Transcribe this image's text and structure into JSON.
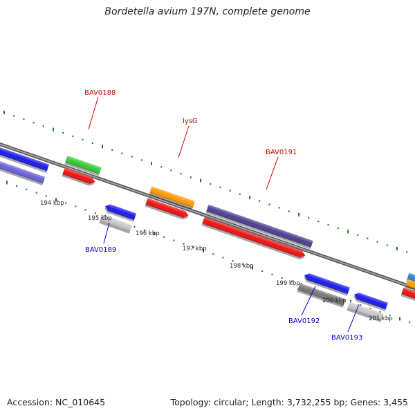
{
  "title": "Bordetella avium 197N, complete genome",
  "footer": {
    "accession": "Accession: NC_010645",
    "summary": "Topology: circular; Length: 3,732,255 bp; Genes: 3,455"
  },
  "scale_labels": [
    "194 kbp",
    "195 kbp",
    "196 kbp",
    "197 kbp",
    "198 kbp",
    "199 kbp",
    "200 kbp",
    "201 kbp"
  ],
  "gene_labels": [
    {
      "text": "BAV0188",
      "strand": "forward",
      "color": "#cc0000"
    },
    {
      "text": "lysG",
      "strand": "forward",
      "color": "#cc0000"
    },
    {
      "text": "BAV0191",
      "strand": "forward",
      "color": "#cc0000"
    },
    {
      "text": "BAV0189",
      "strand": "reverse",
      "color": "#0000cc"
    },
    {
      "text": "BAV0192",
      "strand": "reverse",
      "color": "#0000cc"
    },
    {
      "text": "BAV0193",
      "strand": "reverse",
      "color": "#0000cc"
    }
  ],
  "colors": {
    "backbone": "#8a8a8a",
    "ticks": "#1e7a1e",
    "cds_forward": "#ee1111",
    "cds_reverse": "#1a1aee",
    "gene_orange": "#ff9900",
    "gene_green": "#33cc33",
    "gene_slate": "#4b3f8f",
    "gene_lightblue": "#6a5fd8",
    "gene_gray": "#777777",
    "gene_silver": "#c8c8c8"
  }
}
